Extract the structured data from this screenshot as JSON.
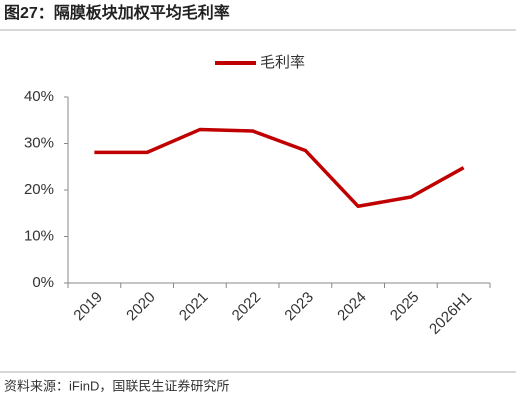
{
  "chart_data": {
    "type": "line",
    "title": "图27：隔膜板块加权平均毛利率",
    "source": "资料来源：iFinD，国联民生证券研究所",
    "categories": [
      "2019",
      "2020",
      "2021",
      "2022",
      "2023",
      "2024",
      "2025",
      "2026H1"
    ],
    "series": [
      {
        "name": "毛利率",
        "color": "#c00000",
        "values": [
          28.1,
          28.1,
          33.0,
          32.7,
          28.5,
          16.5,
          18.5,
          24.8
        ]
      }
    ],
    "ylim": [
      0,
      40
    ],
    "yticks": [
      {
        "value": 0,
        "label": "0%"
      },
      {
        "value": 10,
        "label": "10%"
      },
      {
        "value": 20,
        "label": "20%"
      },
      {
        "value": 30,
        "label": "30%"
      },
      {
        "value": 40,
        "label": "40%"
      }
    ],
    "legend": "top"
  }
}
